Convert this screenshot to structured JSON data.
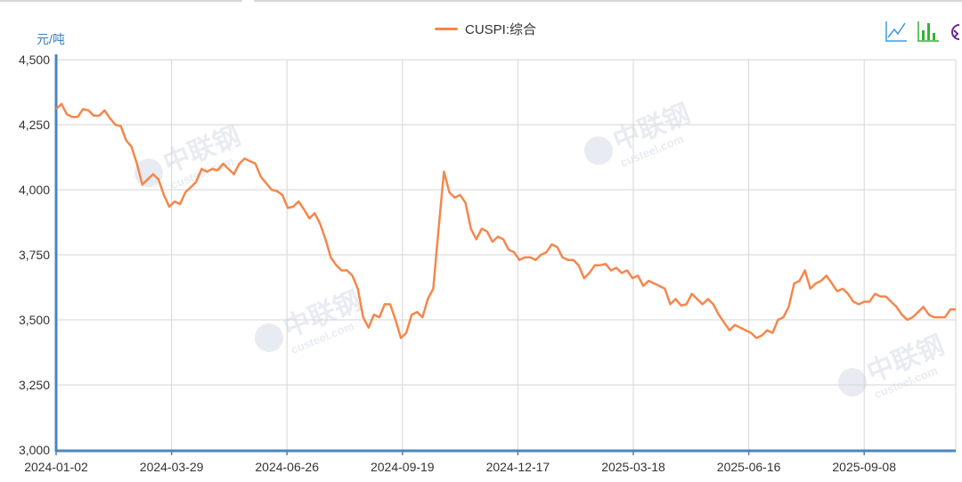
{
  "chart_data": {
    "type": "line",
    "legend": {
      "label": "CUSPI:综合",
      "position": "top-center"
    },
    "ylabel": "元/吨",
    "ylim": [
      3000,
      4500
    ],
    "yticks": [
      "4,500",
      "4,250",
      "4,000",
      "3,750",
      "3,500",
      "3,250",
      "3,000"
    ],
    "ytick_values": [
      4500,
      4250,
      4000,
      3750,
      3500,
      3250,
      3000
    ],
    "xtick_labels": [
      "2024-01-02",
      "2024-03-29",
      "2024-06-26",
      "2024-09-19",
      "2024-12-17",
      "2025-03-18",
      "2025-06-16",
      "2025-09-08"
    ],
    "grid": true,
    "series": [
      {
        "name": "CUSPI:综合",
        "color": "#f4874b",
        "values": [
          4310,
          4330,
          4290,
          4280,
          4280,
          4310,
          4305,
          4285,
          4285,
          4305,
          4275,
          4250,
          4245,
          4190,
          4165,
          4100,
          4020,
          4040,
          4060,
          4040,
          3980,
          3935,
          3955,
          3945,
          3990,
          4010,
          4030,
          4080,
          4070,
          4080,
          4075,
          4100,
          4080,
          4060,
          4100,
          4120,
          4110,
          4100,
          4050,
          4025,
          4000,
          3995,
          3980,
          3930,
          3935,
          3955,
          3925,
          3890,
          3910,
          3870,
          3810,
          3740,
          3710,
          3690,
          3690,
          3670,
          3620,
          3510,
          3470,
          3520,
          3510,
          3560,
          3560,
          3500,
          3430,
          3450,
          3520,
          3530,
          3510,
          3580,
          3620,
          3850,
          4070,
          3990,
          3970,
          3980,
          3950,
          3850,
          3810,
          3850,
          3840,
          3800,
          3820,
          3810,
          3770,
          3760,
          3730,
          3740,
          3740,
          3730,
          3750,
          3760,
          3790,
          3780,
          3740,
          3730,
          3730,
          3710,
          3660,
          3680,
          3710,
          3710,
          3715,
          3690,
          3700,
          3680,
          3690,
          3660,
          3670,
          3630,
          3650,
          3640,
          3630,
          3620,
          3560,
          3580,
          3555,
          3560,
          3600,
          3580,
          3560,
          3580,
          3560,
          3520,
          3490,
          3460,
          3480,
          3470,
          3460,
          3450,
          3430,
          3440,
          3460,
          3450,
          3500,
          3510,
          3550,
          3640,
          3650,
          3690,
          3620,
          3640,
          3650,
          3670,
          3640,
          3610,
          3620,
          3600,
          3570,
          3560,
          3570,
          3570,
          3600,
          3590,
          3590,
          3570,
          3550,
          3520,
          3500,
          3510,
          3530,
          3550,
          3520,
          3510,
          3510,
          3510,
          3540,
          3540
        ]
      }
    ]
  },
  "watermark": {
    "logo": "中联钢",
    "site": "custeel.com"
  },
  "toolbox": {
    "icons": [
      "line-chart-icon",
      "bar-chart-icon",
      "restore-icon"
    ],
    "colors": [
      "#3a9be0",
      "#34b233",
      "#6a2a8c"
    ]
  }
}
